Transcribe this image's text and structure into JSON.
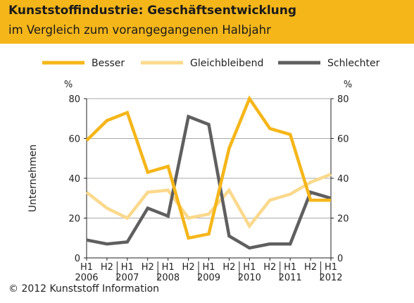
{
  "colors": {
    "header_bg": "#f5b61a",
    "besser": "#f5b61a",
    "gleichbleibend": "#fbd98c",
    "schlechter": "#5f5f5f",
    "grid": "#aaaaaa",
    "axis": "#222222"
  },
  "header": {
    "title": "Kunststoffindustrie: Geschäftsentwicklung",
    "subtitle": "im Vergleich zum vorangegangenen Halbjahr"
  },
  "source": "© 2012 Kunststoff Information",
  "chart_data": {
    "type": "line",
    "title": "Kunststoffindustrie: Geschäftsentwicklung",
    "subtitle": "im Vergleich zum vorangegangenen Halbjahr",
    "ylabel": "Unternehmen",
    "yunit_left": "%",
    "yunit_right": "%",
    "ylim": [
      0,
      80
    ],
    "yticks": [
      0,
      20,
      40,
      60,
      80
    ],
    "grid": "horizontal",
    "legend_position": "top",
    "categories": [
      "H1",
      "H2",
      "H1",
      "H2",
      "H1",
      "H2",
      "H1",
      "H2",
      "H1",
      "H2",
      "H1",
      "H2",
      "H1"
    ],
    "years": [
      {
        "label": "2006",
        "index": 0
      },
      {
        "label": "2007",
        "index": 2
      },
      {
        "label": "2008",
        "index": 4
      },
      {
        "label": "2009",
        "index": 6
      },
      {
        "label": "2010",
        "index": 8
      },
      {
        "label": "2011",
        "index": 10
      },
      {
        "label": "2012",
        "index": 12
      }
    ],
    "series": [
      {
        "name": "Besser",
        "color_key": "besser",
        "values": [
          59,
          69,
          73,
          43,
          46,
          10,
          12,
          55,
          80,
          65,
          62,
          29,
          29
        ]
      },
      {
        "name": "Gleichbleibend",
        "color_key": "gleichbleibend",
        "values": [
          33,
          25,
          20,
          33,
          34,
          20,
          22,
          34,
          16,
          29,
          32,
          38,
          42
        ]
      },
      {
        "name": "Schlechter",
        "color_key": "schlechter",
        "values": [
          9,
          7,
          8,
          25,
          21,
          71,
          67,
          11,
          5,
          7,
          7,
          33,
          30
        ]
      }
    ]
  }
}
